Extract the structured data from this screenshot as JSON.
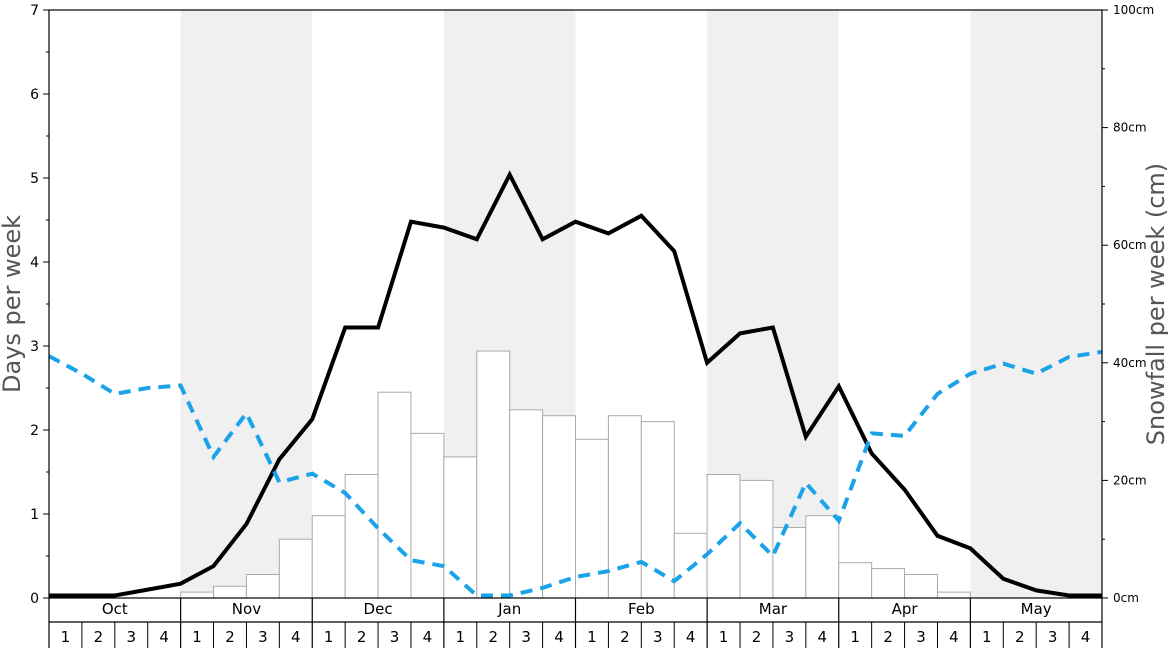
{
  "chart_data": {
    "type": "bar+line",
    "y_left": {
      "label": "Days per week",
      "range": [
        0,
        7
      ],
      "ticks": [
        "0",
        "1",
        "2",
        "3",
        "4",
        "5",
        "6",
        "7"
      ]
    },
    "y_right": {
      "label": "Snowfall per week (cm)",
      "range": [
        0,
        100
      ],
      "ticks": [
        "0cm",
        "20cm",
        "40cm",
        "60cm",
        "80cm",
        "100cm"
      ]
    },
    "months": [
      "Oct",
      "Nov",
      "Dec",
      "Jan",
      "Feb",
      "Mar",
      "Apr",
      "May"
    ],
    "week_labels": [
      "1",
      "2",
      "3",
      "4"
    ],
    "shaded_months": [
      "Nov",
      "Jan",
      "Mar",
      "May"
    ],
    "colors": {
      "bars_fill": "#ffffff",
      "bars_stroke": "#aaaaaa",
      "snow_days_line": "#000000",
      "second_line": "#1aa3e8",
      "shade": "#f0f0f0"
    },
    "series": [
      {
        "kind": "bar",
        "axis": "right",
        "values": [
          0,
          0,
          0,
          0,
          1,
          2,
          4,
          10,
          14,
          21,
          35,
          28,
          24,
          42,
          32,
          31,
          27,
          31,
          30,
          11,
          21,
          20,
          12,
          14,
          6,
          5,
          4,
          1,
          0,
          0,
          0,
          0
        ]
      },
      {
        "kind": "line",
        "axis": "left",
        "style": "solid",
        "values": [
          0.03,
          0.03,
          0.03,
          0.1,
          0.17,
          0.38,
          0.88,
          1.65,
          2.13,
          3.22,
          3.22,
          4.48,
          4.41,
          4.27,
          5.04,
          4.27,
          4.48,
          4.34,
          4.55,
          4.13,
          2.8,
          3.15,
          3.22,
          1.92,
          2.52,
          1.72,
          1.29,
          0.74,
          0.59,
          0.23,
          0.09,
          0.03,
          0.03
        ]
      },
      {
        "kind": "line",
        "axis": "left",
        "style": "dashed",
        "values": [
          2.88,
          2.67,
          2.43,
          2.5,
          2.53,
          1.68,
          2.2,
          1.38,
          1.48,
          1.25,
          0.83,
          0.45,
          0.38,
          0.03,
          0.03,
          0.12,
          0.25,
          0.32,
          0.43,
          0.2,
          0.52,
          0.89,
          0.5,
          1.37,
          0.92,
          1.96,
          1.93,
          2.43,
          2.67,
          2.79,
          2.67,
          2.87,
          2.93
        ]
      }
    ]
  }
}
